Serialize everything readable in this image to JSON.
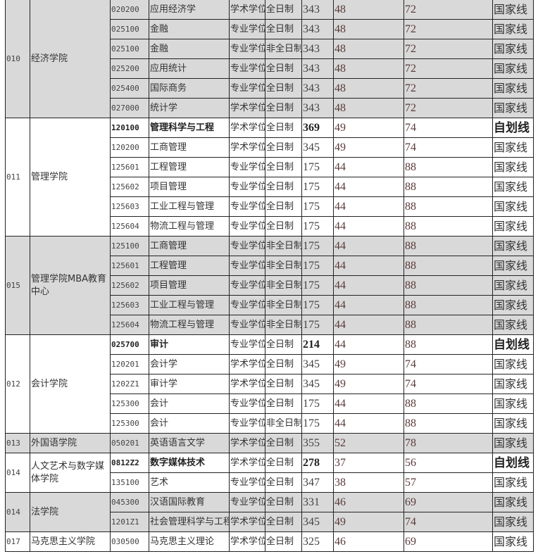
{
  "colors": {
    "shaded_row": "#d9d9d9",
    "border": "#222222",
    "text": "#333333"
  },
  "groups": [
    {
      "code": "010",
      "name": "经济学院",
      "shaded": true,
      "rows": [
        {
          "major_code": "020200",
          "major": "应用经济学",
          "degree_type": "学术学位",
          "study_mode": "全日制",
          "total": "343",
          "sub100": "48",
          "sub150": "72",
          "line_type": "国家线",
          "bold": false
        },
        {
          "major_code": "025100",
          "major": "金融",
          "degree_type": "专业学位",
          "study_mode": "全日制",
          "total": "343",
          "sub100": "48",
          "sub150": "72",
          "line_type": "国家线",
          "bold": false
        },
        {
          "major_code": "025100",
          "major": "金融",
          "degree_type": "专业学位",
          "study_mode": "非全日制",
          "total": "343",
          "sub100": "48",
          "sub150": "72",
          "line_type": "国家线",
          "bold": false
        },
        {
          "major_code": "025200",
          "major": "应用统计",
          "degree_type": "专业学位",
          "study_mode": "全日制",
          "total": "343",
          "sub100": "48",
          "sub150": "72",
          "line_type": "国家线",
          "bold": false
        },
        {
          "major_code": "025400",
          "major": "国际商务",
          "degree_type": "专业学位",
          "study_mode": "全日制",
          "total": "343",
          "sub100": "48",
          "sub150": "72",
          "line_type": "国家线",
          "bold": false
        },
        {
          "major_code": "027000",
          "major": "统计学",
          "degree_type": "学术学位",
          "study_mode": "全日制",
          "total": "343",
          "sub100": "48",
          "sub150": "72",
          "line_type": "国家线",
          "bold": false
        }
      ]
    },
    {
      "code": "011",
      "name": "管理学院",
      "shaded": false,
      "rows": [
        {
          "major_code": "120100",
          "major": "管理科学与工程",
          "degree_type": "学术学位",
          "study_mode": "全日制",
          "total": "369",
          "sub100": "49",
          "sub150": "74",
          "line_type": "自划线",
          "bold": true
        },
        {
          "major_code": "120200",
          "major": "工商管理",
          "degree_type": "学术学位",
          "study_mode": "全日制",
          "total": "345",
          "sub100": "49",
          "sub150": "74",
          "line_type": "国家线",
          "bold": false
        },
        {
          "major_code": "125601",
          "major": "工程管理",
          "degree_type": "专业学位",
          "study_mode": "全日制",
          "total": "175",
          "sub100": "44",
          "sub150": "88",
          "line_type": "国家线",
          "bold": false
        },
        {
          "major_code": "125602",
          "major": "项目管理",
          "degree_type": "专业学位",
          "study_mode": "全日制",
          "total": "175",
          "sub100": "44",
          "sub150": "88",
          "line_type": "国家线",
          "bold": false
        },
        {
          "major_code": "125603",
          "major": "工业工程与管理",
          "degree_type": "专业学位",
          "study_mode": "全日制",
          "total": "175",
          "sub100": "44",
          "sub150": "88",
          "line_type": "国家线",
          "bold": false
        },
        {
          "major_code": "125604",
          "major": "物流工程与管理",
          "degree_type": "专业学位",
          "study_mode": "全日制",
          "total": "175",
          "sub100": "44",
          "sub150": "88",
          "line_type": "国家线",
          "bold": false
        }
      ]
    },
    {
      "code": "015",
      "name": "管理学院MBA教育中心",
      "shaded": true,
      "rows": [
        {
          "major_code": "125100",
          "major": "工商管理",
          "degree_type": "专业学位",
          "study_mode": "非全日制",
          "total": "175",
          "sub100": "44",
          "sub150": "88",
          "line_type": "国家线",
          "bold": false
        },
        {
          "major_code": "125601",
          "major": "工程管理",
          "degree_type": "专业学位",
          "study_mode": "非全日制",
          "total": "175",
          "sub100": "44",
          "sub150": "88",
          "line_type": "国家线",
          "bold": false
        },
        {
          "major_code": "125602",
          "major": "项目管理",
          "degree_type": "专业学位",
          "study_mode": "非全日制",
          "total": "175",
          "sub100": "44",
          "sub150": "88",
          "line_type": "国家线",
          "bold": false
        },
        {
          "major_code": "125603",
          "major": "工业工程与管理",
          "degree_type": "专业学位",
          "study_mode": "非全日制",
          "total": "175",
          "sub100": "44",
          "sub150": "88",
          "line_type": "国家线",
          "bold": false
        },
        {
          "major_code": "125604",
          "major": "物流工程与管理",
          "degree_type": "专业学位",
          "study_mode": "非全日制",
          "total": "175",
          "sub100": "44",
          "sub150": "88",
          "line_type": "国家线",
          "bold": false
        }
      ]
    },
    {
      "code": "012",
      "name": "会计学院",
      "shaded": false,
      "rows": [
        {
          "major_code": "025700",
          "major": "审计",
          "degree_type": "专业学位",
          "study_mode": "全日制",
          "total": "214",
          "sub100": "44",
          "sub150": "88",
          "line_type": "自划线",
          "bold": true
        },
        {
          "major_code": "120201",
          "major": "会计学",
          "degree_type": "学术学位",
          "study_mode": "全日制",
          "total": "345",
          "sub100": "49",
          "sub150": "74",
          "line_type": "国家线",
          "bold": false
        },
        {
          "major_code": "1202Z1",
          "major": "审计学",
          "degree_type": "学术学位",
          "study_mode": "全日制",
          "total": "345",
          "sub100": "49",
          "sub150": "74",
          "line_type": "国家线",
          "bold": false
        },
        {
          "major_code": "125300",
          "major": "会计",
          "degree_type": "专业学位",
          "study_mode": "全日制",
          "total": "175",
          "sub100": "44",
          "sub150": "88",
          "line_type": "国家线",
          "bold": false
        },
        {
          "major_code": "125300",
          "major": "会计",
          "degree_type": "专业学位",
          "study_mode": "非全日制",
          "total": "175",
          "sub100": "44",
          "sub150": "88",
          "line_type": "国家线",
          "bold": false
        }
      ]
    },
    {
      "code": "013",
      "name": "外国语学院",
      "shaded": true,
      "rows": [
        {
          "major_code": "050201",
          "major": "英语语言文学",
          "degree_type": "学术学位",
          "study_mode": "全日制",
          "total": "355",
          "sub100": "52",
          "sub150": "78",
          "line_type": "国家线",
          "bold": false
        }
      ]
    },
    {
      "code": "014",
      "name": "人文艺术与数字媒体学院",
      "shaded": false,
      "rows": [
        {
          "major_code": "0812Z2",
          "major": "数字媒体技术",
          "degree_type": "学术学位",
          "study_mode": "全日制",
          "total": "278",
          "sub100": "37",
          "sub150": "56",
          "line_type": "自划线",
          "bold": true
        },
        {
          "major_code": "135100",
          "major": "艺术",
          "degree_type": "专业学位",
          "study_mode": "全日制",
          "total": "347",
          "sub100": "38",
          "sub150": "57",
          "line_type": "国家线",
          "bold": false
        }
      ]
    },
    {
      "code": "014",
      "name": "法学院",
      "shaded": true,
      "rows": [
        {
          "major_code": "045300",
          "major": "汉语国际教育",
          "degree_type": "专业学位",
          "study_mode": "全日制",
          "total": "331",
          "sub100": "46",
          "sub150": "69",
          "line_type": "国家线",
          "bold": false
        },
        {
          "major_code": "1201Z1",
          "major": "社会管理科学与工程",
          "degree_type": "学术学位",
          "study_mode": "全日制",
          "total": "345",
          "sub100": "49",
          "sub150": "74",
          "line_type": "国家线",
          "bold": false
        }
      ]
    },
    {
      "code": "017",
      "name": "马克思主义学院",
      "shaded": false,
      "rows": [
        {
          "major_code": "030500",
          "major": "马克思主义理论",
          "degree_type": "学术学位",
          "study_mode": "全日制",
          "total": "325",
          "sub100": "46",
          "sub150": "69",
          "line_type": "国家线",
          "bold": false
        }
      ]
    }
  ]
}
